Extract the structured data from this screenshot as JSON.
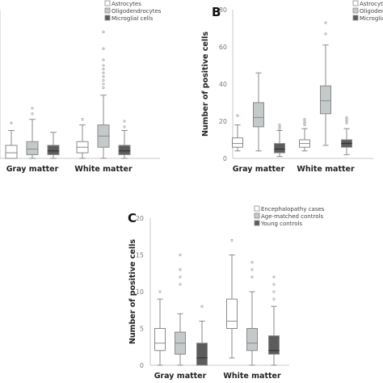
{
  "panels": [
    {
      "letter": "",
      "ylabel": "",
      "ylim": [
        0,
        80
      ],
      "show_y_ticks": false,
      "categories": [
        "Gray matter",
        "White matter"
      ],
      "legend": [
        "Astrocytes",
        "Oligodendrocytes",
        "Microglial cells"
      ]
    },
    {
      "letter": "B",
      "ylabel": "Number of positive cells",
      "ylim": [
        0,
        80
      ],
      "show_y_ticks": true,
      "categories": [
        "Gray matter",
        "White matter"
      ],
      "legend": [
        "Astrocytes",
        "Oligodend",
        "Microgliat"
      ]
    },
    {
      "letter": "C",
      "ylabel": "Number of positive cells",
      "ylim": [
        0,
        20
      ],
      "show_y_ticks": true,
      "categories": [
        "Gray matter",
        "White matter"
      ],
      "legend": [
        "Encephalopathy cases",
        "Age-matched controls",
        "Young controls"
      ]
    }
  ],
  "colors": {
    "box1": "#ffffff",
    "box2": "#c4c9c9",
    "box3": "#5c5c5c",
    "stroke": "#8a8a8a",
    "axis": "#c8c8c8"
  },
  "chart_data": [
    {
      "type": "box",
      "ylim": [
        0,
        80
      ],
      "categories": [
        "Gray matter",
        "White matter"
      ],
      "series": [
        {
          "name": "Astrocytes",
          "stats": [
            {
              "min": 0,
              "q1": 0,
              "median": 3,
              "q3": 7,
              "max": 15,
              "outliers": [
                19
              ]
            },
            {
              "min": 0,
              "q1": 3,
              "median": 6,
              "q3": 9,
              "max": 18,
              "outliers": [
                21
              ]
            }
          ]
        },
        {
          "name": "Oligodendrocytes",
          "stats": [
            {
              "min": 0,
              "q1": 2,
              "median": 5,
              "q3": 9,
              "max": 21,
              "outliers": [
                24,
                27
              ]
            },
            {
              "min": 0,
              "q1": 6,
              "median": 12,
              "q3": 18,
              "max": 34,
              "outliers": [
                38,
                40,
                42,
                44,
                46,
                48,
                50,
                53,
                59,
                68
              ]
            }
          ]
        },
        {
          "name": "Microglial cells",
          "stats": [
            {
              "min": 0,
              "q1": 2,
              "median": 4,
              "q3": 7,
              "max": 14,
              "outliers": []
            },
            {
              "min": 0,
              "q1": 2,
              "median": 4,
              "q3": 7,
              "max": 15,
              "outliers": [
                17,
                20
              ]
            }
          ]
        }
      ]
    },
    {
      "type": "box",
      "ylim": [
        0,
        80
      ],
      "yticks": [
        0,
        20,
        40,
        60,
        80
      ],
      "categories": [
        "Gray matter",
        "White matter"
      ],
      "series": [
        {
          "name": "Astrocytes",
          "stats": [
            {
              "min": 4,
              "q1": 6,
              "median": 8,
              "q3": 11,
              "max": 18,
              "outliers": [
                23
              ]
            },
            {
              "min": 4,
              "q1": 6,
              "median": 8,
              "q3": 10,
              "max": 16,
              "outliers": [
                18,
                19,
                20,
                21
              ]
            }
          ]
        },
        {
          "name": "Oligodend",
          "stats": [
            {
              "min": 4,
              "q1": 17,
              "median": 22,
              "q3": 30,
              "max": 46,
              "outliers": []
            },
            {
              "min": 7,
              "q1": 24,
              "median": 31,
              "q3": 39,
              "max": 61,
              "outliers": [
                67,
                73
              ]
            }
          ]
        },
        {
          "name": "Microgliat",
          "stats": [
            {
              "min": 1,
              "q1": 3,
              "median": 5,
              "q3": 8,
              "max": 15,
              "outliers": [
                16,
                17,
                18
              ]
            },
            {
              "min": 2,
              "q1": 6,
              "median": 8,
              "q3": 10,
              "max": 16,
              "outliers": [
                19,
                20,
                21,
                22
              ]
            }
          ]
        }
      ]
    },
    {
      "type": "box",
      "ylim": [
        0,
        20
      ],
      "yticks": [
        0,
        5,
        10,
        15,
        20
      ],
      "categories": [
        "Gray matter",
        "White matter"
      ],
      "series": [
        {
          "name": "Encephalopathy cases",
          "stats": [
            {
              "min": 0,
              "q1": 2,
              "median": 3,
              "q3": 5,
              "max": 9,
              "outliers": [
                10
              ]
            },
            {
              "min": 1,
              "q1": 5,
              "median": 6,
              "q3": 9,
              "max": 15,
              "outliers": [
                17
              ]
            }
          ]
        },
        {
          "name": "Age-matched controls",
          "stats": [
            {
              "min": 0,
              "q1": 1.5,
              "median": 3,
              "q3": 4.5,
              "max": 7,
              "outliers": [
                11,
                12,
                13,
                15
              ]
            },
            {
              "min": 0,
              "q1": 2,
              "median": 3,
              "q3": 5,
              "max": 10,
              "outliers": [
                12,
                13,
                14
              ]
            }
          ]
        },
        {
          "name": "Young controls",
          "stats": [
            {
              "min": 0,
              "q1": 0,
              "median": 1,
              "q3": 3,
              "max": 6,
              "outliers": [
                8
              ]
            },
            {
              "min": 0,
              "q1": 1.5,
              "median": 2,
              "q3": 4,
              "max": 8,
              "outliers": [
                9,
                10,
                11,
                12
              ]
            }
          ]
        }
      ]
    }
  ]
}
